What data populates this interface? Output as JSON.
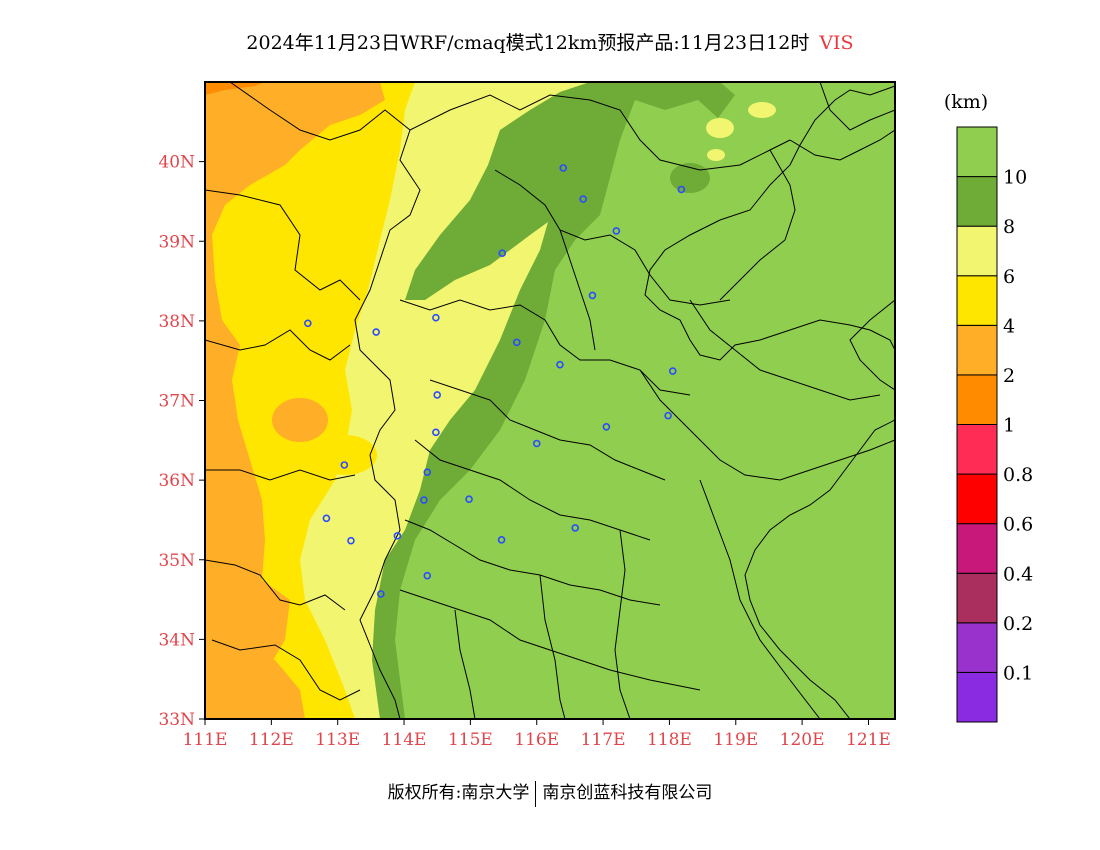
{
  "title": {
    "text": "2024年11月23日WRF/cmaq模式12km预报产品:11月23日12时",
    "variable": "VIS",
    "variable_color": "#e8393f"
  },
  "map": {
    "lon_range": [
      111,
      121.4
    ],
    "lat_range": [
      33,
      41
    ],
    "x_ticks": [
      "111E",
      "112E",
      "113E",
      "114E",
      "115E",
      "116E",
      "117E",
      "118E",
      "119E",
      "120E",
      "121E"
    ],
    "y_ticks": [
      "33N",
      "34N",
      "35N",
      "36N",
      "37N",
      "38N",
      "39N",
      "40N"
    ],
    "tick_color": "#e0454b",
    "station_color": "#2a4cff",
    "stations": [
      {
        "lon": 116.4,
        "lat": 39.92
      },
      {
        "lon": 116.7,
        "lat": 39.53
      },
      {
        "lon": 118.18,
        "lat": 39.65
      },
      {
        "lon": 117.2,
        "lat": 39.13
      },
      {
        "lon": 115.48,
        "lat": 38.85
      },
      {
        "lon": 116.84,
        "lat": 38.32
      },
      {
        "lon": 112.55,
        "lat": 37.97
      },
      {
        "lon": 113.58,
        "lat": 37.86
      },
      {
        "lon": 114.48,
        "lat": 38.04
      },
      {
        "lon": 115.7,
        "lat": 37.73
      },
      {
        "lon": 116.35,
        "lat": 37.45
      },
      {
        "lon": 114.5,
        "lat": 37.07
      },
      {
        "lon": 118.05,
        "lat": 37.37
      },
      {
        "lon": 117.98,
        "lat": 36.81
      },
      {
        "lon": 114.48,
        "lat": 36.6
      },
      {
        "lon": 116.0,
        "lat": 36.46
      },
      {
        "lon": 117.05,
        "lat": 36.67
      },
      {
        "lon": 113.1,
        "lat": 36.19
      },
      {
        "lon": 114.35,
        "lat": 36.1
      },
      {
        "lon": 114.3,
        "lat": 35.75
      },
      {
        "lon": 114.98,
        "lat": 35.76
      },
      {
        "lon": 112.83,
        "lat": 35.52
      },
      {
        "lon": 113.2,
        "lat": 35.24
      },
      {
        "lon": 113.9,
        "lat": 35.3
      },
      {
        "lon": 115.47,
        "lat": 35.25
      },
      {
        "lon": 116.58,
        "lat": 35.4
      },
      {
        "lon": 114.35,
        "lat": 34.8
      },
      {
        "lon": 113.65,
        "lat": 34.57
      }
    ]
  },
  "colorbar": {
    "unit": "(km)",
    "colors": [
      "#8a2be2",
      "#9932cc",
      "#aa2f5f",
      "#c8187a",
      "#ff0000",
      "#ff2d55",
      "#ff8c00",
      "#ffae28",
      "#ffe600",
      "#f2f570",
      "#6eab37",
      "#8fce4f"
    ],
    "labels": [
      "0.1",
      "0.2",
      "0.4",
      "0.6",
      "0.8",
      "1",
      "2",
      "4",
      "6",
      "8",
      "10"
    ]
  },
  "chart_data": {
    "type": "heatmap",
    "title": "2024年11月23日WRF/cmaq模式12km预报产品:11月23日12时 VIS",
    "variable": "VIS",
    "unit": "km",
    "xlabel": "",
    "ylabel": "",
    "x_ticks": [
      "111E",
      "112E",
      "113E",
      "114E",
      "115E",
      "116E",
      "117E",
      "118E",
      "119E",
      "120E",
      "121E"
    ],
    "y_ticks": [
      "33N",
      "34N",
      "35N",
      "36N",
      "37N",
      "38N",
      "39N",
      "40N"
    ],
    "levels": [
      0.1,
      0.2,
      0.4,
      0.6,
      0.8,
      1,
      2,
      4,
      6,
      8,
      10
    ],
    "regions": [
      {
        "area": "far west edge (111–112E) and south-west corner",
        "visibility_km": "2–4"
      },
      {
        "area": "Shanxi / western Hebei (112–114.5E)",
        "visibility_km": "4–6"
      },
      {
        "area": "Taihang foothill belt (113.5–115.5E)",
        "visibility_km": "6–8"
      },
      {
        "area": "narrow band along 115–116.5E and northern Beijing area",
        "visibility_km": "8–10"
      },
      {
        "area": "North China Plain and Shandong (east of 116E)",
        "visibility_km": ">10"
      }
    ]
  },
  "footer": {
    "left": "版权所有:南京大学",
    "right": "南京创蓝科技有限公司"
  }
}
